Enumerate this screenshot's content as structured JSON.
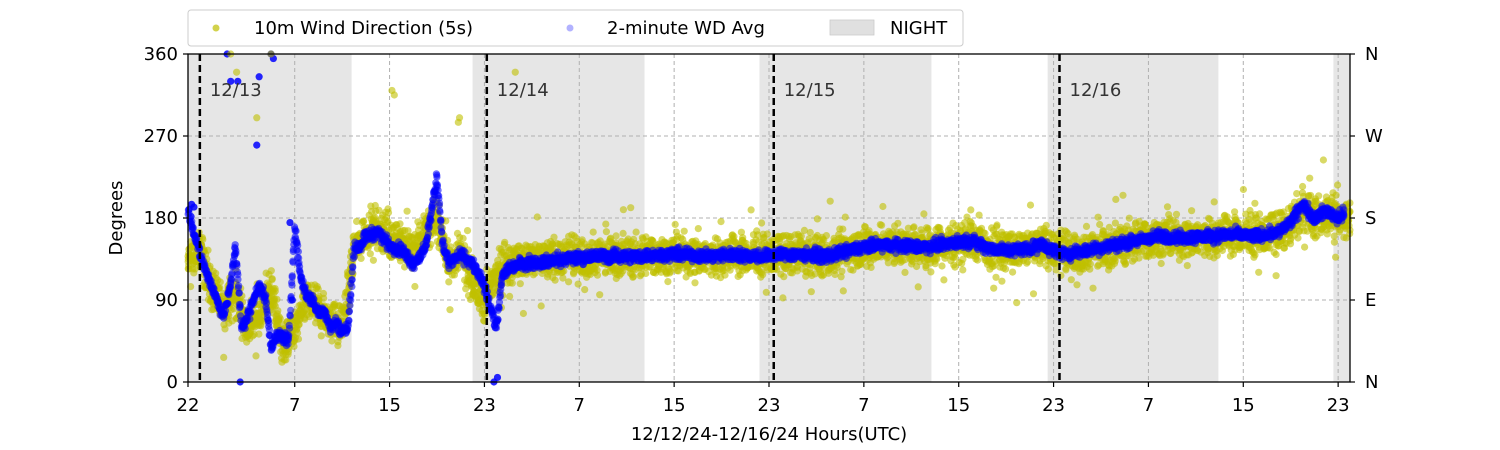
{
  "chart_data": {
    "type": "scatter",
    "title": "",
    "xlabel": "12/12/24-12/16/24  Hours(UTC)",
    "ylabel": "Degrees",
    "xlim": [
      0,
      98
    ],
    "ylim": [
      0,
      360
    ],
    "x_unit": "hours since 12/12/24 22:00 UTC",
    "x_ticks": [
      {
        "x": 0,
        "label": "22"
      },
      {
        "x": 9,
        "label": "7"
      },
      {
        "x": 17,
        "label": "15"
      },
      {
        "x": 25,
        "label": "23"
      },
      {
        "x": 33,
        "label": "7"
      },
      {
        "x": 41,
        "label": "15"
      },
      {
        "x": 49,
        "label": "23"
      },
      {
        "x": 57,
        "label": "7"
      },
      {
        "x": 65,
        "label": "15"
      },
      {
        "x": 73,
        "label": "23"
      },
      {
        "x": 81,
        "label": "7"
      },
      {
        "x": 89,
        "label": "15"
      },
      {
        "x": 97,
        "label": "23"
      }
    ],
    "y_ticks": [
      0,
      90,
      180,
      270,
      360
    ],
    "right_axis_labels": [
      {
        "y": 0,
        "label": "N"
      },
      {
        "y": 90,
        "label": "E"
      },
      {
        "y": 180,
        "label": "S"
      },
      {
        "y": 270,
        "label": "W"
      },
      {
        "y": 360,
        "label": "N"
      }
    ],
    "grid": true,
    "legend_position": "top",
    "legend": [
      {
        "label": "10m Wind Direction (5s)",
        "color": "#bfbf00",
        "marker": "dot"
      },
      {
        "label": "2-minute WD Avg",
        "color": "#0000ff",
        "marker": "dot"
      },
      {
        "label": "NIGHT",
        "color": "#d9d9d9",
        "marker": "patch"
      }
    ],
    "night_spans": [
      [
        0,
        13.8
      ],
      [
        24,
        38.5
      ],
      [
        48.2,
        62.7
      ],
      [
        72.5,
        86.9
      ],
      [
        96.6,
        98
      ]
    ],
    "day_markers": [
      {
        "x": 1,
        "label": "12/13"
      },
      {
        "x": 25.2,
        "label": "12/14"
      },
      {
        "x": 49.4,
        "label": "12/15"
      },
      {
        "x": 73.5,
        "label": "12/16"
      }
    ],
    "series": [
      {
        "name": "10m Wind Direction (5s)",
        "color": "#bfbf00",
        "spread": 32,
        "x": [
          0,
          1,
          2,
          3,
          4,
          5,
          6,
          7,
          8,
          9,
          10,
          11,
          12,
          13,
          14,
          15,
          16,
          17,
          18,
          19,
          20,
          21,
          22,
          23,
          24,
          25,
          26,
          27,
          28,
          30,
          32,
          34,
          36,
          38,
          40,
          42,
          44,
          46,
          48,
          50,
          52,
          54,
          56,
          58,
          60,
          62,
          64,
          66,
          68,
          70,
          72,
          74,
          76,
          78,
          80,
          82,
          84,
          86,
          88,
          90,
          92,
          93,
          94,
          95,
          96,
          97,
          98
        ],
        "values": [
          130,
          150,
          100,
          80,
          95,
          60,
          70,
          100,
          40,
          55,
          90,
          80,
          70,
          60,
          145,
          165,
          170,
          160,
          150,
          145,
          165,
          180,
          130,
          140,
          110,
          85,
          125,
          130,
          133,
          135,
          135,
          138,
          140,
          138,
          140,
          140,
          138,
          140,
          138,
          140,
          140,
          138,
          145,
          150,
          150,
          148,
          152,
          155,
          148,
          145,
          150,
          140,
          145,
          150,
          155,
          160,
          158,
          160,
          162,
          160,
          165,
          170,
          190,
          180,
          185,
          178,
          182
        ]
      },
      {
        "name": "2-minute WD Avg",
        "color": "#0000ff",
        "spread": 10,
        "x": [
          0,
          1,
          2,
          3,
          3.5,
          4,
          4.5,
          5,
          5.5,
          6,
          6.5,
          7,
          7.5,
          8,
          8.5,
          9,
          9.5,
          10,
          10.5,
          11,
          11.5,
          12,
          12.5,
          13,
          13.5,
          14,
          14.5,
          15,
          16,
          17,
          18,
          19,
          20,
          21,
          21.5,
          22,
          23,
          24,
          25,
          26,
          26.5,
          27,
          28,
          30,
          32,
          34,
          36,
          38,
          40,
          42,
          44,
          46,
          48,
          50,
          52,
          54,
          56,
          58,
          60,
          62,
          64,
          66,
          68,
          70,
          72,
          74,
          76,
          78,
          80,
          82,
          84,
          86,
          88,
          90,
          92,
          93,
          94,
          95,
          96,
          97,
          97.5
        ],
        "values": [
          190,
          140,
          105,
          72,
          100,
          150,
          60,
          70,
          90,
          105,
          95,
          40,
          50,
          50,
          45,
          170,
          115,
          95,
          90,
          75,
          80,
          60,
          65,
          55,
          60,
          145,
          150,
          160,
          165,
          150,
          145,
          130,
          145,
          225,
          150,
          130,
          140,
          130,
          105,
          60,
          115,
          125,
          130,
          132,
          135,
          138,
          138,
          138,
          140,
          140,
          138,
          140,
          138,
          140,
          140,
          138,
          145,
          150,
          150,
          148,
          152,
          155,
          145,
          145,
          150,
          140,
          145,
          150,
          155,
          160,
          158,
          160,
          162,
          160,
          165,
          175,
          195,
          180,
          188,
          180,
          185
        ]
      },
      {
        "name": "2-minute WD Avg (isolated points)",
        "color": "#0000ff",
        "spread": 0,
        "x": [
          0.3,
          0.5,
          3.3,
          3.6,
          4.2,
          4.4,
          5.8,
          6.0,
          7.0,
          7.2,
          8.6,
          8.8,
          25.8,
          26.1
        ],
        "values": [
          195,
          192,
          360,
          330,
          330,
          0,
          260,
          335,
          360,
          355,
          175,
          90,
          0,
          5
        ]
      },
      {
        "name": "10m Wind Direction (5s) (isolated points)",
        "color": "#bfbf00",
        "spread": 0,
        "x": [
          3.6,
          4.1,
          5.8,
          7.0,
          17.2,
          17.4,
          22.8,
          22.9,
          27.6
        ],
        "values": [
          360,
          340,
          290,
          360,
          320,
          315,
          285,
          290,
          340
        ]
      }
    ]
  }
}
